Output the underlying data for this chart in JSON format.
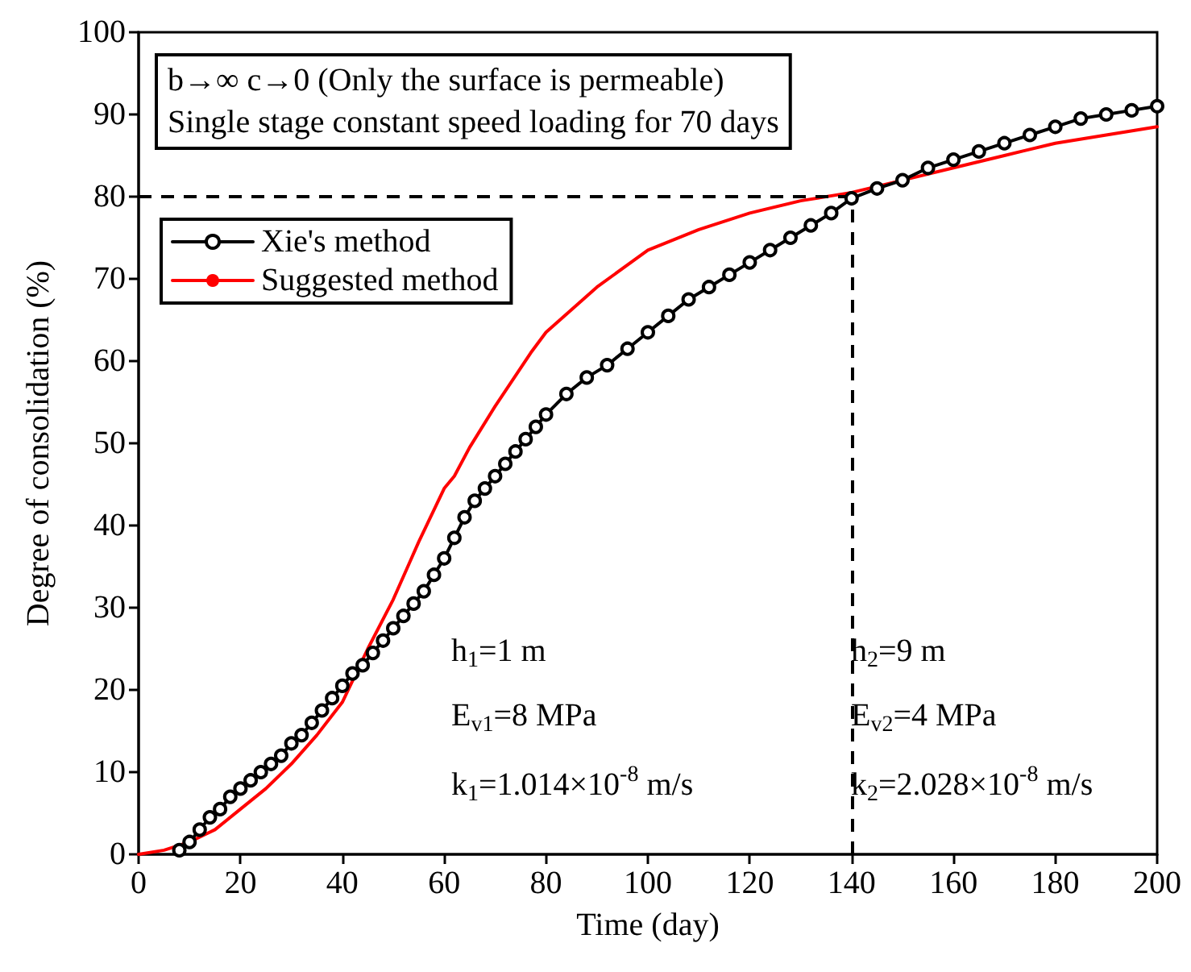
{
  "chart_data": {
    "type": "line",
    "title": "b→∞ c→0 (Only the surface is permeable)",
    "subtitle": "Single stage constant speed loading for 70 days",
    "xlabel": "Time (day)",
    "ylabel": "Degree of consolidation (%)",
    "xlim": [
      0,
      200
    ],
    "xticks": [
      0,
      20,
      40,
      60,
      80,
      100,
      120,
      140,
      160,
      180,
      200
    ],
    "ylim": [
      0,
      100
    ],
    "yticks": [
      0,
      10,
      20,
      30,
      40,
      50,
      60,
      70,
      80,
      90,
      100
    ],
    "grid": false,
    "legend": "top left",
    "line_style": "solid",
    "series": [
      {
        "name": "Xie's method",
        "color": "#000000",
        "marker": "circle",
        "x": [
          8,
          10,
          12,
          14,
          16,
          18,
          20,
          22,
          24,
          26,
          28,
          30,
          32,
          34,
          36,
          38,
          40,
          42,
          44,
          46,
          48,
          50,
          52,
          54,
          56,
          58,
          60,
          62,
          64,
          66,
          68,
          70,
          72,
          74,
          76,
          78,
          80,
          84,
          88,
          92,
          96,
          100,
          104,
          108,
          112,
          116,
          120,
          124,
          128,
          132,
          136,
          140,
          145,
          150,
          155,
          160,
          165,
          170,
          175,
          180,
          185,
          190,
          195,
          200
        ],
        "values": [
          0.5,
          1.5,
          3,
          4.5,
          5.5,
          7,
          8,
          9,
          10,
          11,
          12,
          13.5,
          14.5,
          16,
          17.5,
          19,
          20.5,
          22,
          23,
          24.5,
          26,
          27.5,
          29,
          30.5,
          32,
          34,
          36,
          38.5,
          41,
          43,
          44.5,
          46,
          47.5,
          49,
          50.5,
          52,
          53.5,
          56,
          58,
          59.5,
          61.5,
          63.5,
          65.5,
          67.5,
          69,
          70.5,
          72,
          73.5,
          75,
          76.5,
          78,
          79.8,
          81,
          82,
          83.5,
          84.5,
          85.5,
          86.5,
          87.5,
          88.5,
          89.5,
          90,
          90.5,
          91
        ]
      },
      {
        "name": "Suggested method",
        "color": "#ff0000",
        "marker": "none",
        "x": [
          0,
          5,
          10,
          15,
          20,
          25,
          30,
          35,
          40,
          45,
          50,
          55,
          60,
          62,
          65,
          70,
          77,
          80,
          90,
          100,
          110,
          120,
          130,
          140,
          150,
          160,
          170,
          180,
          190,
          200
        ],
        "values": [
          0,
          0.5,
          1.5,
          3,
          5.5,
          8,
          11,
          14.5,
          18.5,
          25,
          31,
          38,
          44.5,
          46,
          49.5,
          54.5,
          61,
          63.5,
          69,
          73.5,
          76,
          78,
          79.5,
          80.5,
          82,
          83.5,
          85,
          86.5,
          87.5,
          88.5
        ]
      }
    ],
    "ref_lines": [
      {
        "axis": "y",
        "value": 80,
        "line_style": "dashed",
        "color": "#000000"
      },
      {
        "axis": "x",
        "value": 140,
        "line_style": "dashed",
        "color": "#000000"
      }
    ],
    "annotations": [
      "h$_{1}$=1 m",
      "E$_{v1}$=8 MPa",
      "k$_{1}$=1.014×10$^{-8}$ m/s",
      "h$_{2}$=9 m",
      "E$_{v2}$=4 MPa",
      "k$_{2}$=2.028×10$^{-8}$ m/s"
    ]
  }
}
